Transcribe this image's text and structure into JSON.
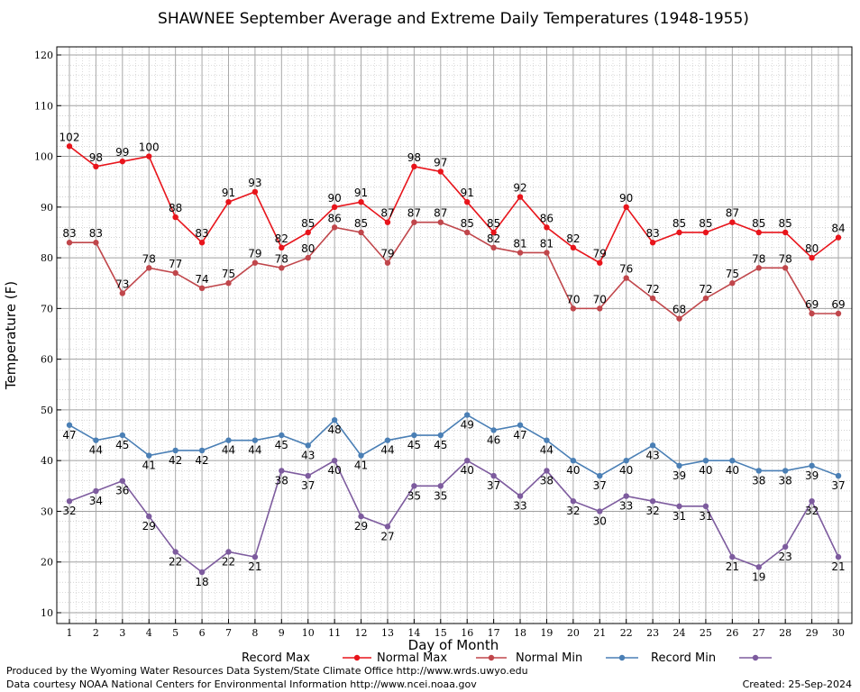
{
  "chart_data": {
    "type": "line",
    "title": "SHAWNEE September Average and Extreme Daily Temperatures (1948-1955)",
    "xlabel": "Day of Month",
    "ylabel": "Temperature (F)",
    "xlim": [
      1,
      30
    ],
    "ylim": [
      10,
      120
    ],
    "yticks": [
      10,
      20,
      30,
      40,
      50,
      60,
      70,
      80,
      90,
      100,
      110,
      120
    ],
    "grid": true,
    "x": [
      1,
      2,
      3,
      4,
      5,
      6,
      7,
      8,
      9,
      10,
      11,
      12,
      13,
      14,
      15,
      16,
      17,
      18,
      19,
      20,
      21,
      22,
      23,
      24,
      25,
      26,
      27,
      28,
      29,
      30
    ],
    "x_tick_labels": [
      "1",
      "2",
      "3",
      "4",
      "5",
      "6",
      "7",
      "8",
      "9",
      "10",
      "11",
      "12",
      "13",
      "14",
      "15",
      "16",
      "17",
      "18",
      "19",
      "20",
      "21",
      "22",
      "23",
      "24",
      "25",
      "26",
      "27",
      "28",
      "29",
      "30"
    ],
    "series": [
      {
        "name": "Record Max",
        "color": "#e8141b",
        "label_pos": "above",
        "values": [
          102,
          98,
          99,
          100,
          88,
          83,
          91,
          93,
          82,
          85,
          90,
          91,
          87,
          98,
          97,
          91,
          85,
          92,
          86,
          82,
          79,
          90,
          83,
          85,
          85,
          87,
          85,
          85,
          80,
          84
        ]
      },
      {
        "name": "Normal Max",
        "color": "#c0464b",
        "label_pos": "above",
        "values": [
          83,
          83,
          73,
          78,
          77,
          74,
          75,
          79,
          78,
          80,
          86,
          85,
          79,
          87,
          87,
          85,
          82,
          81,
          81,
          70,
          70,
          76,
          72,
          68,
          72,
          75,
          78,
          78,
          69,
          69
        ]
      },
      {
        "name": "Normal Min",
        "color": "#4a7fb5",
        "label_pos": "below",
        "values": [
          47,
          44,
          45,
          41,
          42,
          42,
          44,
          44,
          45,
          43,
          48,
          41,
          44,
          45,
          45,
          49,
          46,
          47,
          44,
          40,
          37,
          40,
          43,
          39,
          40,
          40,
          38,
          38,
          39,
          37
        ]
      },
      {
        "name": "Record Min",
        "color": "#7d5b9e",
        "label_pos": "below",
        "values": [
          32,
          34,
          36,
          29,
          22,
          18,
          22,
          21,
          38,
          37,
          40,
          29,
          27,
          35,
          35,
          40,
          37,
          33,
          38,
          32,
          30,
          33,
          32,
          31,
          31,
          21,
          19,
          23,
          32,
          21
        ]
      }
    ]
  },
  "footer": {
    "producer": "Produced by the Wyoming Water Resources Data System/State Climate Office http://www.wrds.uwyo.edu",
    "courtesy": "Data courtesy NOAA National Centers for Environmental Information http://www.ncei.noaa.gov",
    "created": "Created:  25-Sep-2024"
  }
}
